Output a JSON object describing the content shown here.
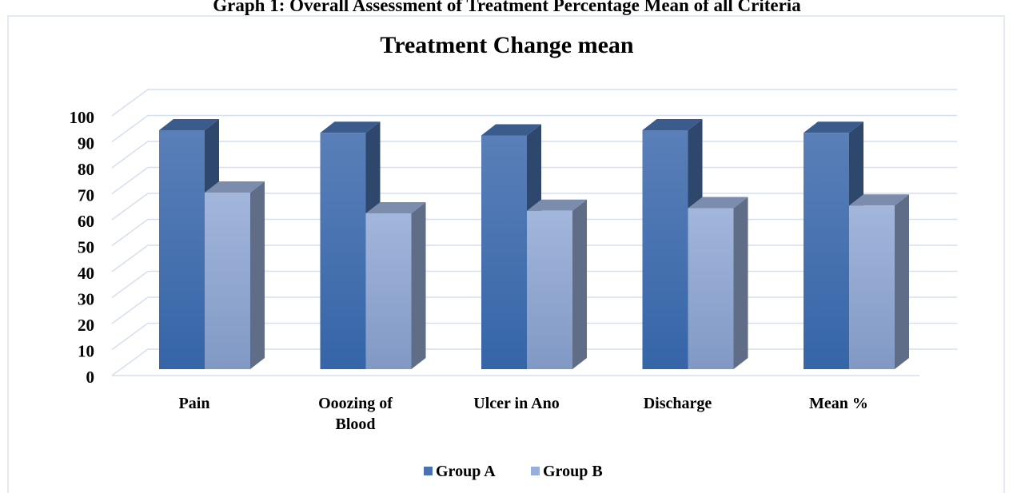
{
  "heading": "Graph 1: Overall Assessment of Treatment Percentage Mean of all Criteria",
  "chart_data": {
    "type": "bar3d",
    "title": "Treatment Change mean",
    "categories": [
      "Pain",
      "Ooozing of Blood",
      "Ulcer in Ano",
      "Discharge",
      "Mean %"
    ],
    "series": [
      {
        "name": "Group A",
        "color": "#4a72b0",
        "values": [
          92,
          91,
          90,
          92,
          91
        ]
      },
      {
        "name": "Group B",
        "color": "#9aafd8",
        "values": [
          68,
          60,
          61,
          62,
          63
        ]
      }
    ],
    "ylim": [
      0,
      100
    ],
    "yticks": [
      0,
      10,
      20,
      30,
      40,
      50,
      60,
      70,
      80,
      90,
      100
    ],
    "grid": true,
    "legend": "bottom"
  }
}
